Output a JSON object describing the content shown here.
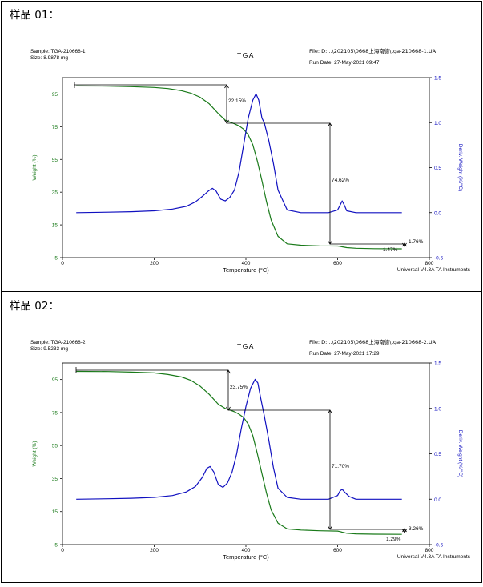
{
  "colors": {
    "weight": "#1a7a1a",
    "deriv": "#1010c0",
    "axis": "#000000",
    "annotation": "#000000",
    "weight_axis_text": "#1a7a1a",
    "deriv_axis_text": "#1010c0"
  },
  "panels": [
    {
      "heading": "样品 01：",
      "sample_line": "Sample: TGA-210668-1",
      "size_line": "Size:  8.9878 mg",
      "center_title": "TGA",
      "file_line": "File: D:...\\202105\\0668上海南德\\tga-210668-1.UA",
      "run_line": "Run Date: 27-May-2021 09:47",
      "footer": "Universal V4.3A TA Instruments",
      "annotations": [
        "22.15%",
        "74.62%",
        "1.76%",
        "1.47%"
      ]
    },
    {
      "heading": "样品 02：",
      "sample_line": "Sample: TGA-210668-2",
      "size_line": "Size:  9.5233 mg",
      "center_title": "TGA",
      "file_line": "File: D:...\\202105\\0668上海南德\\tga-210668-2.UA",
      "run_line": "Run Date: 27-May-2021 17:29",
      "footer": "Universal V4.3A TA Instruments",
      "annotations": [
        "23.75%",
        "71.70%",
        "3.26%",
        "1.29%"
      ]
    }
  ],
  "chart_data": [
    {
      "type": "line",
      "title": "TGA",
      "xlabel": "Temperature (°C)",
      "ylabel": "Weight (%)",
      "y2label": "Deriv. Weight (%/°C)",
      "xlim": [
        0,
        800
      ],
      "ylim": [
        -5,
        105
      ],
      "y2lim": [
        -0.5,
        1.5
      ],
      "x_ticks": [
        0,
        200,
        400,
        600,
        800
      ],
      "y_ticks": [
        -5,
        15,
        35,
        55,
        75,
        95
      ],
      "y2_ticks": [
        -0.5,
        0.0,
        0.5,
        1.0,
        1.5
      ],
      "series": [
        {
          "name": "Weight (%)",
          "axis": "left",
          "x": [
            30,
            100,
            150,
            200,
            230,
            260,
            280,
            300,
            320,
            340,
            355,
            365,
            375,
            385,
            395,
            405,
            415,
            425,
            435,
            445,
            455,
            470,
            490,
            520,
            560,
            600,
            605,
            610,
            620,
            640,
            680,
            740
          ],
          "y": [
            99.9,
            99.8,
            99.5,
            99.0,
            98.3,
            97.0,
            95.5,
            93.0,
            89.0,
            83.0,
            79.0,
            77.8,
            76.8,
            75.5,
            73.5,
            70.0,
            64.0,
            54.0,
            42.0,
            29.0,
            18.0,
            8.0,
            3.4,
            2.6,
            2.2,
            2.1,
            1.9,
            1.6,
            1.1,
            0.7,
            0.5,
            0.4
          ]
        },
        {
          "name": "Deriv. Weight (%/°C)",
          "axis": "right",
          "x": [
            30,
            100,
            150,
            200,
            240,
            270,
            290,
            305,
            318,
            327,
            335,
            345,
            355,
            365,
            375,
            385,
            395,
            405,
            415,
            422,
            428,
            435,
            440,
            450,
            460,
            470,
            490,
            520,
            580,
            600,
            605,
            610,
            615,
            620,
            640,
            740
          ],
          "y": [
            0.0,
            0.005,
            0.01,
            0.02,
            0.04,
            0.07,
            0.12,
            0.18,
            0.24,
            0.27,
            0.24,
            0.15,
            0.13,
            0.17,
            0.25,
            0.45,
            0.75,
            1.05,
            1.25,
            1.32,
            1.25,
            1.05,
            1.0,
            0.8,
            0.55,
            0.25,
            0.03,
            0.0,
            0.0,
            0.03,
            0.08,
            0.13,
            0.08,
            0.02,
            0.0,
            0.0
          ]
        }
      ],
      "annotations": [
        "22.15%",
        "74.62%",
        "1.76%",
        "1.47%"
      ]
    },
    {
      "type": "line",
      "title": "TGA",
      "xlabel": "Temperature (°C)",
      "ylabel": "Weight (%)",
      "y2label": "Deriv. Weight (%/°C)",
      "xlim": [
        0,
        800
      ],
      "ylim": [
        -5,
        105
      ],
      "y2lim": [
        -0.5,
        1.5
      ],
      "x_ticks": [
        0,
        200,
        400,
        600,
        800
      ],
      "y_ticks": [
        -5,
        15,
        35,
        55,
        75,
        95
      ],
      "y2_ticks": [
        -0.5,
        0.0,
        0.5,
        1.0,
        1.5
      ],
      "series": [
        {
          "name": "Weight (%)",
          "axis": "left",
          "x": [
            30,
            100,
            150,
            200,
            230,
            260,
            280,
            300,
            320,
            340,
            355,
            365,
            375,
            385,
            395,
            405,
            415,
            425,
            435,
            445,
            455,
            470,
            490,
            520,
            560,
            600,
            605,
            610,
            620,
            640,
            680,
            740
          ],
          "y": [
            99.9,
            99.8,
            99.5,
            99.0,
            98.0,
            96.5,
            94.5,
            91.0,
            86.0,
            80.0,
            77.5,
            76.5,
            75.5,
            74.0,
            72.0,
            68.0,
            61.0,
            50.0,
            38.0,
            26.0,
            16.0,
            8.0,
            4.5,
            3.8,
            3.4,
            3.2,
            2.9,
            2.5,
            1.9,
            1.5,
            1.3,
            1.2
          ]
        },
        {
          "name": "Deriv. Weight (%/°C)",
          "axis": "right",
          "x": [
            30,
            100,
            150,
            200,
            240,
            270,
            290,
            305,
            315,
            322,
            330,
            340,
            350,
            360,
            370,
            380,
            390,
            400,
            410,
            420,
            426,
            432,
            440,
            450,
            460,
            470,
            490,
            520,
            580,
            600,
            605,
            610,
            615,
            625,
            640,
            740
          ],
          "y": [
            0.0,
            0.005,
            0.01,
            0.02,
            0.04,
            0.08,
            0.14,
            0.24,
            0.34,
            0.36,
            0.3,
            0.16,
            0.13,
            0.18,
            0.3,
            0.5,
            0.78,
            1.02,
            1.22,
            1.32,
            1.28,
            1.12,
            0.92,
            0.65,
            0.35,
            0.12,
            0.02,
            0.0,
            0.0,
            0.04,
            0.09,
            0.11,
            0.08,
            0.03,
            0.0,
            0.0
          ]
        }
      ],
      "annotations": [
        "23.75%",
        "71.70%",
        "3.26%",
        "1.29%"
      ]
    }
  ]
}
